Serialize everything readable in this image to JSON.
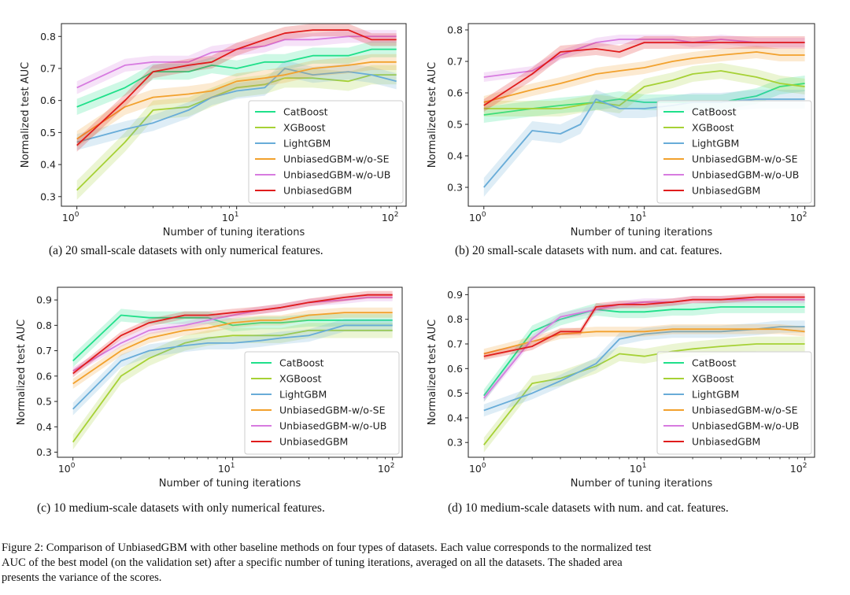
{
  "figure": {
    "caption_lines": [
      "Figure 2: Comparison of UnbiasedGBM with other baseline methods on four types of datasets. Each value corresponds to the normalized test",
      "AUC of the best model (on the validation set) after a specific number of tuning iterations, averaged on all the datasets. The shaded area",
      "presents the variance of the scores."
    ]
  },
  "colors": {
    "CatBoost": "#1fe08a",
    "XGBoost": "#a6d135",
    "LightGBM": "#68acd8",
    "UnbiasedGBM-w/o-SE": "#f2a12d",
    "UnbiasedGBM-w/o-UB": "#d77be0",
    "UnbiasedGBM": "#e01c1c"
  },
  "chart_data": [
    {
      "type": "line",
      "caption": "(a)  20 small-scale datasets with only numerical features.",
      "xlabel": "Number of tuning iterations",
      "ylabel": "Normalized test AUC",
      "xscale": "log",
      "xlim": [
        0.8,
        115
      ],
      "ylim": [
        0.27,
        0.84
      ],
      "xticks": [
        1,
        10,
        100
      ],
      "xtick_labels": [
        "10",
        "10",
        "10"
      ],
      "xtick_exps": [
        "0",
        "1",
        "2"
      ],
      "yticks": [
        0.3,
        0.4,
        0.5,
        0.6,
        0.7,
        0.8
      ],
      "ytick_labels": [
        "0.3",
        "0.4",
        "0.5",
        "0.6",
        "0.7",
        "0.8"
      ],
      "legend": "lower-right",
      "series": [
        {
          "name": "CatBoost",
          "x": [
            1,
            2,
            3,
            5,
            7,
            10,
            15,
            20,
            30,
            50,
            70,
            100
          ],
          "y": [
            0.58,
            0.64,
            0.69,
            0.69,
            0.71,
            0.7,
            0.72,
            0.72,
            0.74,
            0.74,
            0.76,
            0.76
          ],
          "band": 0.025
        },
        {
          "name": "XGBoost",
          "x": [
            1,
            2,
            3,
            5,
            7,
            10,
            15,
            20,
            30,
            50,
            70,
            100
          ],
          "y": [
            0.32,
            0.47,
            0.57,
            0.58,
            0.61,
            0.64,
            0.65,
            0.67,
            0.67,
            0.66,
            0.68,
            0.68
          ],
          "band": 0.03
        },
        {
          "name": "LightGBM",
          "x": [
            1,
            2,
            3,
            5,
            7,
            10,
            15,
            20,
            30,
            50,
            70,
            100
          ],
          "y": [
            0.47,
            0.51,
            0.53,
            0.57,
            0.61,
            0.63,
            0.64,
            0.7,
            0.68,
            0.69,
            0.68,
            0.66
          ],
          "band": 0.025
        },
        {
          "name": "UnbiasedGBM-w/o-SE",
          "x": [
            1,
            2,
            3,
            5,
            7,
            10,
            15,
            20,
            30,
            50,
            70,
            100
          ],
          "y": [
            0.48,
            0.58,
            0.61,
            0.62,
            0.63,
            0.66,
            0.67,
            0.68,
            0.7,
            0.71,
            0.72,
            0.72
          ],
          "band": 0.025
        },
        {
          "name": "UnbiasedGBM-w/o-UB",
          "x": [
            1,
            2,
            3,
            5,
            7,
            10,
            15,
            20,
            30,
            50,
            70,
            100
          ],
          "y": [
            0.64,
            0.71,
            0.72,
            0.72,
            0.75,
            0.76,
            0.77,
            0.79,
            0.79,
            0.8,
            0.8,
            0.8
          ],
          "band": 0.02
        },
        {
          "name": "UnbiasedGBM",
          "x": [
            1,
            2,
            3,
            5,
            7,
            10,
            15,
            20,
            30,
            50,
            70,
            100
          ],
          "y": [
            0.46,
            0.6,
            0.69,
            0.71,
            0.72,
            0.76,
            0.79,
            0.81,
            0.82,
            0.82,
            0.79,
            0.79
          ],
          "band": 0.02
        }
      ]
    },
    {
      "type": "line",
      "caption": "(b)  20 small-scale datasets with num. and cat. features.",
      "xlabel": "Number of tuning iterations",
      "ylabel": "Normalized test AUC",
      "xscale": "log",
      "xlim": [
        0.8,
        115
      ],
      "ylim": [
        0.24,
        0.82
      ],
      "xticks": [
        1,
        10,
        100
      ],
      "xtick_labels": [
        "10",
        "10",
        "10"
      ],
      "xtick_exps": [
        "0",
        "1",
        "2"
      ],
      "yticks": [
        0.3,
        0.4,
        0.5,
        0.6,
        0.7,
        0.8
      ],
      "ytick_labels": [
        "0.3",
        "0.4",
        "0.5",
        "0.6",
        "0.7",
        "0.8"
      ],
      "legend": "lower-right",
      "series": [
        {
          "name": "CatBoost",
          "x": [
            1,
            2,
            3,
            5,
            7,
            10,
            15,
            20,
            30,
            50,
            70,
            100
          ],
          "y": [
            0.53,
            0.55,
            0.56,
            0.57,
            0.58,
            0.57,
            0.57,
            0.57,
            0.57,
            0.59,
            0.62,
            0.63
          ],
          "band": 0.025
        },
        {
          "name": "XGBoost",
          "x": [
            1,
            2,
            3,
            5,
            7,
            10,
            15,
            20,
            30,
            50,
            70,
            100
          ],
          "y": [
            0.55,
            0.55,
            0.55,
            0.57,
            0.56,
            0.62,
            0.64,
            0.66,
            0.67,
            0.65,
            0.63,
            0.62
          ],
          "band": 0.025
        },
        {
          "name": "LightGBM",
          "x": [
            1,
            2,
            3,
            4,
            5,
            7,
            10,
            15,
            20,
            30,
            50,
            70,
            100
          ],
          "y": [
            0.3,
            0.48,
            0.47,
            0.5,
            0.58,
            0.55,
            0.55,
            0.56,
            0.57,
            0.57,
            0.58,
            0.58,
            0.58
          ],
          "band": 0.03
        },
        {
          "name": "UnbiasedGBM-w/o-SE",
          "x": [
            1,
            2,
            3,
            5,
            7,
            10,
            15,
            20,
            30,
            50,
            70,
            100
          ],
          "y": [
            0.57,
            0.61,
            0.63,
            0.66,
            0.67,
            0.68,
            0.7,
            0.71,
            0.72,
            0.73,
            0.72,
            0.72
          ],
          "band": 0.02
        },
        {
          "name": "UnbiasedGBM-w/o-UB",
          "x": [
            1,
            2,
            3,
            5,
            7,
            10,
            15,
            20,
            30,
            50,
            70,
            100
          ],
          "y": [
            0.65,
            0.67,
            0.72,
            0.76,
            0.77,
            0.77,
            0.77,
            0.76,
            0.77,
            0.76,
            0.76,
            0.76
          ],
          "band": 0.015
        },
        {
          "name": "UnbiasedGBM",
          "x": [
            1,
            2,
            3,
            5,
            7,
            10,
            15,
            20,
            30,
            50,
            70,
            100
          ],
          "y": [
            0.56,
            0.66,
            0.73,
            0.74,
            0.73,
            0.76,
            0.76,
            0.76,
            0.76,
            0.76,
            0.76,
            0.76
          ],
          "band": 0.02
        }
      ]
    },
    {
      "type": "line",
      "caption": "(c)  10 medium-scale datasets with only numerical features.",
      "xlabel": "Number of tuning iterations",
      "ylabel": "Normalized test AUC",
      "xscale": "log",
      "xlim": [
        0.8,
        115
      ],
      "ylim": [
        0.28,
        0.95
      ],
      "xticks": [
        1,
        10,
        100
      ],
      "xtick_labels": [
        "10",
        "10",
        "10"
      ],
      "xtick_exps": [
        "0",
        "1",
        "2"
      ],
      "yticks": [
        0.3,
        0.4,
        0.5,
        0.6,
        0.7,
        0.8,
        0.9
      ],
      "ytick_labels": [
        "0.3",
        "0.4",
        "0.5",
        "0.6",
        "0.7",
        "0.8",
        "0.9"
      ],
      "legend": "lower-right",
      "series": [
        {
          "name": "CatBoost",
          "x": [
            1,
            2,
            3,
            5,
            7,
            10,
            15,
            20,
            30,
            50,
            70,
            100
          ],
          "y": [
            0.66,
            0.84,
            0.83,
            0.83,
            0.83,
            0.8,
            0.81,
            0.81,
            0.82,
            0.82,
            0.82,
            0.82
          ],
          "band": 0.025
        },
        {
          "name": "XGBoost",
          "x": [
            1,
            2,
            3,
            5,
            7,
            10,
            15,
            20,
            30,
            50,
            70,
            100
          ],
          "y": [
            0.34,
            0.6,
            0.67,
            0.73,
            0.75,
            0.76,
            0.76,
            0.76,
            0.78,
            0.78,
            0.78,
            0.78
          ],
          "band": 0.03
        },
        {
          "name": "LightGBM",
          "x": [
            1,
            2,
            3,
            5,
            7,
            10,
            15,
            20,
            30,
            50,
            70,
            100
          ],
          "y": [
            0.47,
            0.66,
            0.7,
            0.72,
            0.73,
            0.73,
            0.74,
            0.75,
            0.76,
            0.8,
            0.8,
            0.8
          ],
          "band": 0.025
        },
        {
          "name": "UnbiasedGBM-w/o-SE",
          "x": [
            1,
            2,
            3,
            5,
            7,
            10,
            15,
            20,
            30,
            50,
            70,
            100
          ],
          "y": [
            0.57,
            0.7,
            0.75,
            0.78,
            0.79,
            0.81,
            0.82,
            0.82,
            0.84,
            0.85,
            0.85,
            0.85
          ],
          "band": 0.02
        },
        {
          "name": "UnbiasedGBM-w/o-UB",
          "x": [
            1,
            2,
            3,
            5,
            7,
            10,
            15,
            20,
            30,
            50,
            70,
            100
          ],
          "y": [
            0.62,
            0.73,
            0.78,
            0.8,
            0.82,
            0.84,
            0.86,
            0.87,
            0.89,
            0.9,
            0.91,
            0.91
          ],
          "band": 0.015
        },
        {
          "name": "UnbiasedGBM",
          "x": [
            1,
            2,
            3,
            5,
            7,
            10,
            15,
            20,
            30,
            50,
            70,
            100
          ],
          "y": [
            0.61,
            0.76,
            0.81,
            0.84,
            0.84,
            0.85,
            0.86,
            0.87,
            0.89,
            0.91,
            0.92,
            0.92
          ],
          "band": 0.015
        }
      ]
    },
    {
      "type": "line",
      "caption": "(d)  10 medium-scale datasets with num. and cat. features.",
      "xlabel": "Number of tuning iterations",
      "ylabel": "Normalized test AUC",
      "xscale": "log",
      "xlim": [
        0.8,
        115
      ],
      "ylim": [
        0.24,
        0.93
      ],
      "xticks": [
        1,
        10,
        100
      ],
      "xtick_labels": [
        "10",
        "10",
        "10"
      ],
      "xtick_exps": [
        "0",
        "1",
        "2"
      ],
      "yticks": [
        0.3,
        0.4,
        0.5,
        0.6,
        0.7,
        0.8,
        0.9
      ],
      "ytick_labels": [
        "0.3",
        "0.4",
        "0.5",
        "0.6",
        "0.7",
        "0.8",
        "0.9"
      ],
      "legend": "lower-right",
      "series": [
        {
          "name": "CatBoost",
          "x": [
            1,
            2,
            3,
            5,
            7,
            10,
            15,
            20,
            30,
            50,
            70,
            100
          ],
          "y": [
            0.49,
            0.75,
            0.8,
            0.84,
            0.83,
            0.83,
            0.84,
            0.84,
            0.85,
            0.85,
            0.85,
            0.85
          ],
          "band": 0.025
        },
        {
          "name": "XGBoost",
          "x": [
            1,
            2,
            3,
            5,
            7,
            10,
            15,
            20,
            30,
            50,
            70,
            100
          ],
          "y": [
            0.29,
            0.54,
            0.56,
            0.61,
            0.66,
            0.65,
            0.67,
            0.68,
            0.69,
            0.7,
            0.7,
            0.7
          ],
          "band": 0.03
        },
        {
          "name": "LightGBM",
          "x": [
            1,
            2,
            3,
            5,
            7,
            10,
            15,
            20,
            30,
            50,
            70,
            100
          ],
          "y": [
            0.43,
            0.5,
            0.55,
            0.62,
            0.72,
            0.74,
            0.75,
            0.75,
            0.75,
            0.76,
            0.77,
            0.77
          ],
          "band": 0.025
        },
        {
          "name": "UnbiasedGBM-w/o-SE",
          "x": [
            1,
            2,
            3,
            5,
            7,
            10,
            15,
            20,
            30,
            50,
            70,
            100
          ],
          "y": [
            0.66,
            0.71,
            0.74,
            0.75,
            0.75,
            0.75,
            0.76,
            0.76,
            0.76,
            0.76,
            0.76,
            0.75
          ],
          "band": 0.02
        },
        {
          "name": "UnbiasedGBM-w/o-UB",
          "x": [
            1,
            2,
            3,
            5,
            7,
            10,
            15,
            20,
            30,
            50,
            70,
            100
          ],
          "y": [
            0.48,
            0.72,
            0.81,
            0.84,
            0.86,
            0.87,
            0.87,
            0.88,
            0.88,
            0.88,
            0.88,
            0.88
          ],
          "band": 0.015
        },
        {
          "name": "UnbiasedGBM",
          "x": [
            1,
            2,
            3,
            4,
            5,
            7,
            10,
            15,
            20,
            30,
            50,
            70,
            100
          ],
          "y": [
            0.65,
            0.69,
            0.75,
            0.75,
            0.85,
            0.86,
            0.86,
            0.87,
            0.88,
            0.88,
            0.89,
            0.89,
            0.89
          ],
          "band": 0.015
        }
      ]
    }
  ]
}
